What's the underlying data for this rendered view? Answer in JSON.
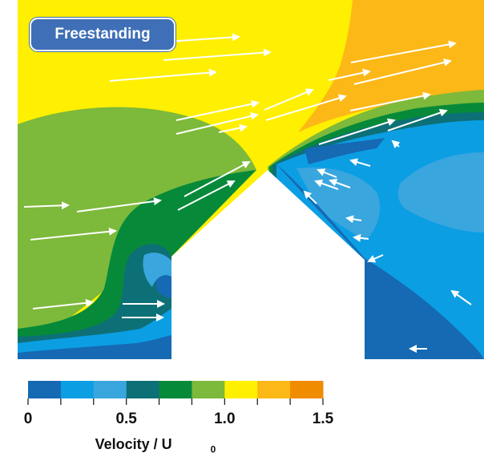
{
  "label": "Freestanding",
  "colorbar": {
    "colors": [
      "#1669b3",
      "#0b9ee3",
      "#3aa6de",
      "#0d7077",
      "#068a3a",
      "#7db93a",
      "#ffef00",
      "#fcb817",
      "#f08c00"
    ],
    "tick_labels": [
      "0",
      "0.5",
      "1.0",
      "1.5"
    ],
    "tick_values": [
      0,
      0.5,
      1.0,
      1.5
    ],
    "range": [
      0,
      1.5
    ],
    "title_main": "Velocity / U",
    "title_sub": "0"
  },
  "arrow_color": "#ffffff"
}
